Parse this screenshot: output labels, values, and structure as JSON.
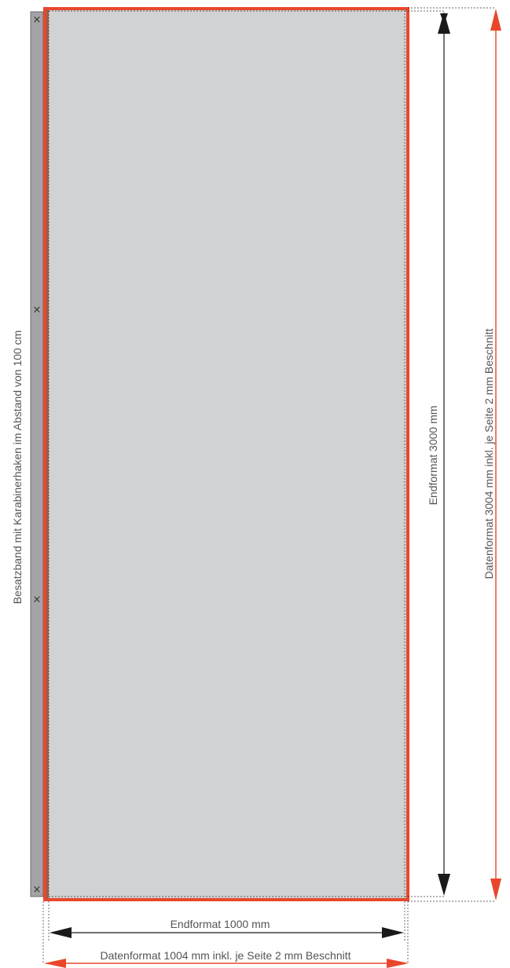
{
  "strip_label": "Besatzband mit Karabinerhaken im Abstand von 100 cm",
  "hook_symbol": "×",
  "hooks": [
    {
      "position_cm": 0
    },
    {
      "position_cm": 100
    },
    {
      "position_cm": 200
    },
    {
      "position_cm": 300
    }
  ],
  "dimensions": {
    "final_height": "Endformat  3000 mm",
    "data_height": "Datenformat 3004 mm inkl. je Seite 2 mm Beschnitt",
    "final_width": "Endformat  1000 mm",
    "data_width": "Datenformat 1004 mm inkl. je Seite 2 mm Beschnitt"
  },
  "colors": {
    "panel_fill": "#d1d2d4",
    "bleed_outline": "#e8472c",
    "strip_fill": "#a4a3a8",
    "strip_edge": "#9b6048",
    "final_arrow": "#1a1a1a",
    "data_arrow": "#e8472c"
  }
}
